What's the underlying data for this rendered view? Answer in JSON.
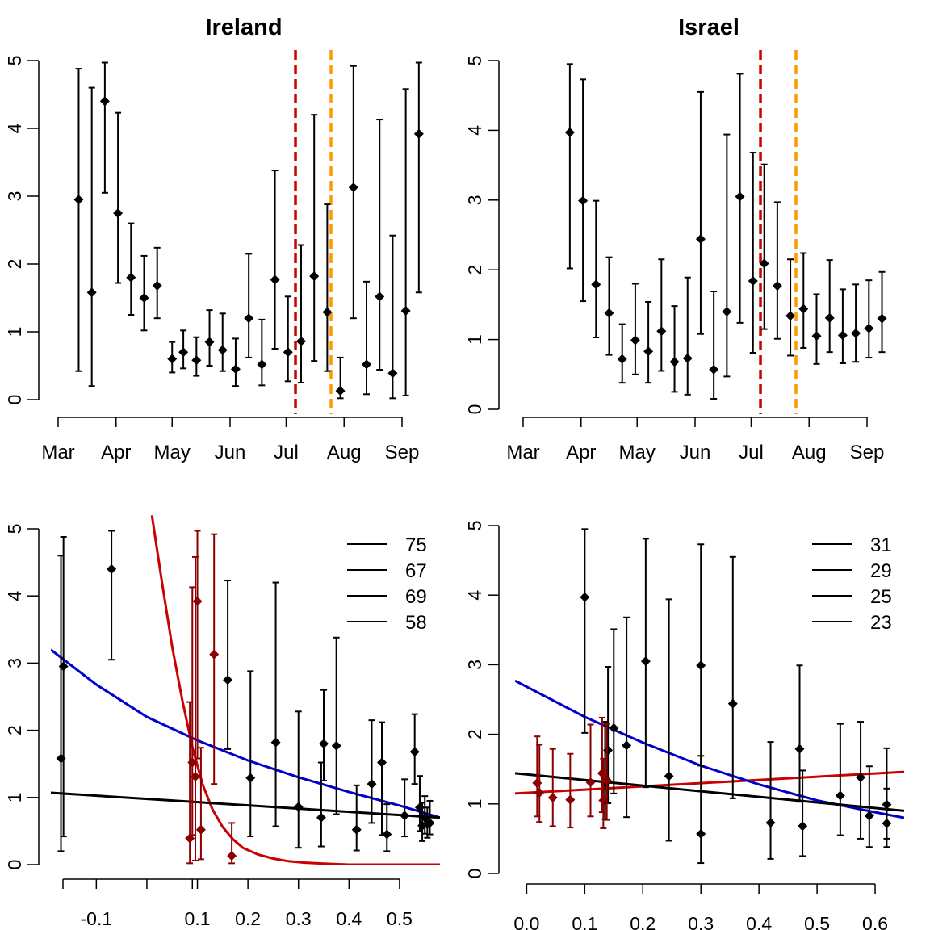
{
  "colors": {
    "points": "#000000",
    "late_points": "#8b0000",
    "red_fit": "#cc0000",
    "blue_fit": "#0000cc",
    "black_fit": "#000000",
    "vline_red": "#cc0000",
    "vline_orange": "#ff9900"
  },
  "chart_data": [
    {
      "type": "scatter",
      "title": "Ireland",
      "ylim": [
        0,
        5
      ],
      "yticks": [
        0,
        1,
        2,
        3,
        4,
        5
      ],
      "x_ticks": [
        {
          "label": "Mar",
          "date": "Mar 1"
        },
        {
          "label": "Apr",
          "date": "Apr 1"
        },
        {
          "label": "May",
          "date": "May 1"
        },
        {
          "label": "Jun",
          "date": "Jun 1"
        },
        {
          "label": "Jul",
          "date": "Jul 1"
        },
        {
          "label": "Aug",
          "date": "Aug 1"
        },
        {
          "label": "Sep",
          "date": "Sep 1"
        }
      ],
      "vlines": [
        {
          "date": "Jul 6",
          "color": "red",
          "style": "dashed"
        },
        {
          "date": "Jul 25",
          "color": "orange",
          "style": "dashed"
        }
      ],
      "points": [
        {
          "date": "Mar 12",
          "y": 2.95,
          "lo": 0.42,
          "hi": 4.88
        },
        {
          "date": "Mar 19",
          "y": 1.58,
          "lo": 0.2,
          "hi": 4.6
        },
        {
          "date": "Mar 26",
          "y": 4.4,
          "lo": 3.05,
          "hi": 4.97
        },
        {
          "date": "Apr 2",
          "y": 2.75,
          "lo": 1.72,
          "hi": 4.23
        },
        {
          "date": "Apr 9",
          "y": 1.8,
          "lo": 1.25,
          "hi": 2.6
        },
        {
          "date": "Apr 16",
          "y": 1.5,
          "lo": 1.02,
          "hi": 2.12
        },
        {
          "date": "Apr 23",
          "y": 1.68,
          "lo": 1.2,
          "hi": 2.24
        },
        {
          "date": "May 1",
          "y": 0.6,
          "lo": 0.4,
          "hi": 0.85
        },
        {
          "date": "May 7",
          "y": 0.7,
          "lo": 0.46,
          "hi": 1.02
        },
        {
          "date": "May 14",
          "y": 0.58,
          "lo": 0.35,
          "hi": 0.92
        },
        {
          "date": "May 21",
          "y": 0.85,
          "lo": 0.5,
          "hi": 1.32
        },
        {
          "date": "May 28",
          "y": 0.73,
          "lo": 0.42,
          "hi": 1.27
        },
        {
          "date": "Jun 4",
          "y": 0.45,
          "lo": 0.2,
          "hi": 0.9
        },
        {
          "date": "Jun 11",
          "y": 1.2,
          "lo": 0.62,
          "hi": 2.15
        },
        {
          "date": "Jun 18",
          "y": 0.52,
          "lo": 0.21,
          "hi": 1.18
        },
        {
          "date": "Jun 25",
          "y": 1.77,
          "lo": 0.75,
          "hi": 3.38
        },
        {
          "date": "Jul 2",
          "y": 0.7,
          "lo": 0.27,
          "hi": 1.52
        },
        {
          "date": "Jul 9",
          "y": 0.86,
          "lo": 0.25,
          "hi": 2.28
        },
        {
          "date": "Jul 16",
          "y": 1.82,
          "lo": 0.57,
          "hi": 4.2
        },
        {
          "date": "Jul 23",
          "y": 1.29,
          "lo": 0.42,
          "hi": 2.88
        },
        {
          "date": "Jul 30",
          "y": 0.13,
          "lo": 0.02,
          "hi": 0.62
        },
        {
          "date": "Aug 6",
          "y": 3.13,
          "lo": 1.2,
          "hi": 4.92
        },
        {
          "date": "Aug 13",
          "y": 0.52,
          "lo": 0.08,
          "hi": 1.74
        },
        {
          "date": "Aug 20",
          "y": 1.52,
          "lo": 0.44,
          "hi": 4.13
        },
        {
          "date": "Aug 27",
          "y": 0.39,
          "lo": 0.02,
          "hi": 2.42
        },
        {
          "date": "Sep 3",
          "y": 1.31,
          "lo": 0.06,
          "hi": 4.58
        },
        {
          "date": "Sep 10",
          "y": 3.92,
          "lo": 1.58,
          "hi": 4.97
        }
      ]
    },
    {
      "type": "scatter",
      "title": "Israel",
      "ylim": [
        0,
        5
      ],
      "yticks": [
        0,
        1,
        2,
        3,
        4,
        5
      ],
      "x_ticks": [
        {
          "label": "Mar",
          "date": "Mar 1"
        },
        {
          "label": "Apr",
          "date": "Apr 1"
        },
        {
          "label": "May",
          "date": "May 1"
        },
        {
          "label": "Jun",
          "date": "Jun 1"
        },
        {
          "label": "Jul",
          "date": "Jul 1"
        },
        {
          "label": "Aug",
          "date": "Aug 1"
        },
        {
          "label": "Sep",
          "date": "Sep 1"
        }
      ],
      "vlines": [
        {
          "date": "Jul 6",
          "color": "red",
          "style": "dashed"
        },
        {
          "date": "Jul 25",
          "color": "orange",
          "style": "dashed"
        }
      ],
      "points": [
        {
          "date": "Mar 26",
          "y": 3.97,
          "lo": 2.02,
          "hi": 4.95
        },
        {
          "date": "Apr 2",
          "y": 2.99,
          "lo": 1.55,
          "hi": 4.73
        },
        {
          "date": "Apr 9",
          "y": 1.79,
          "lo": 1.03,
          "hi": 2.99
        },
        {
          "date": "Apr 16",
          "y": 1.38,
          "lo": 0.78,
          "hi": 2.18
        },
        {
          "date": "Apr 23",
          "y": 0.72,
          "lo": 0.38,
          "hi": 1.22
        },
        {
          "date": "Apr 30",
          "y": 0.99,
          "lo": 0.5,
          "hi": 1.8
        },
        {
          "date": "May 7",
          "y": 0.83,
          "lo": 0.38,
          "hi": 1.54
        },
        {
          "date": "May 14",
          "y": 1.12,
          "lo": 0.55,
          "hi": 2.15
        },
        {
          "date": "May 21",
          "y": 0.68,
          "lo": 0.25,
          "hi": 1.48
        },
        {
          "date": "May 28",
          "y": 0.73,
          "lo": 0.21,
          "hi": 1.89
        },
        {
          "date": "Jun 4",
          "y": 2.44,
          "lo": 1.08,
          "hi": 4.55
        },
        {
          "date": "Jun 11",
          "y": 0.57,
          "lo": 0.15,
          "hi": 1.69
        },
        {
          "date": "Jun 18",
          "y": 1.4,
          "lo": 0.47,
          "hi": 3.94
        },
        {
          "date": "Jun 25",
          "y": 3.05,
          "lo": 1.24,
          "hi": 4.81
        },
        {
          "date": "Jul 2",
          "y": 1.84,
          "lo": 0.81,
          "hi": 3.68
        },
        {
          "date": "Jul 8",
          "y": 2.09,
          "lo": 1.15,
          "hi": 3.51
        },
        {
          "date": "Jul 15",
          "y": 1.77,
          "lo": 1.01,
          "hi": 2.97
        },
        {
          "date": "Jul 22",
          "y": 1.34,
          "lo": 0.77,
          "hi": 2.15
        },
        {
          "date": "Jul 29",
          "y": 1.44,
          "lo": 0.88,
          "hi": 2.24
        },
        {
          "date": "Aug 5",
          "y": 1.05,
          "lo": 0.65,
          "hi": 1.65
        },
        {
          "date": "Aug 12",
          "y": 1.31,
          "lo": 0.82,
          "hi": 2.14
        },
        {
          "date": "Aug 19",
          "y": 1.06,
          "lo": 0.66,
          "hi": 1.72
        },
        {
          "date": "Aug 26",
          "y": 1.09,
          "lo": 0.68,
          "hi": 1.79
        },
        {
          "date": "Sep 2",
          "y": 1.16,
          "lo": 0.74,
          "hi": 1.85
        },
        {
          "date": "Sep 9",
          "y": 1.3,
          "lo": 0.82,
          "hi": 1.97
        }
      ]
    },
    {
      "type": "scatter",
      "title": "",
      "xlim": [
        -0.19,
        0.58
      ],
      "ylim": [
        0,
        5
      ],
      "yticks": [
        0,
        1,
        2,
        3,
        4,
        5
      ],
      "xticks": [
        -0.1,
        0.1,
        0.2,
        0.3,
        0.4,
        0.5
      ],
      "xtick_labels": [
        "-0.1",
        "0.1",
        "0.2",
        "0.3",
        "0.4",
        "0.5"
      ],
      "extra_xticks": [
        0.0,
        0.09
      ],
      "legend": {
        "placement": "top-right",
        "entries": [
          "75",
          "67",
          "69",
          "58"
        ]
      },
      "points": [
        {
          "x": -0.17,
          "y": 1.58,
          "lo": 0.2,
          "hi": 4.6
        },
        {
          "x": -0.165,
          "y": 2.95,
          "lo": 0.42,
          "hi": 4.88
        },
        {
          "x": -0.07,
          "y": 4.4,
          "lo": 3.05,
          "hi": 4.97
        },
        {
          "x": 0.16,
          "y": 2.75,
          "lo": 1.72,
          "hi": 4.23
        },
        {
          "x": 0.205,
          "y": 1.29,
          "lo": 0.42,
          "hi": 2.88
        },
        {
          "x": 0.255,
          "y": 1.82,
          "lo": 0.57,
          "hi": 4.2
        },
        {
          "x": 0.3,
          "y": 0.86,
          "lo": 0.25,
          "hi": 2.28
        },
        {
          "x": 0.345,
          "y": 0.7,
          "lo": 0.27,
          "hi": 1.52
        },
        {
          "x": 0.35,
          "y": 1.8,
          "lo": 1.25,
          "hi": 2.6
        },
        {
          "x": 0.375,
          "y": 1.77,
          "lo": 0.75,
          "hi": 3.38
        },
        {
          "x": 0.415,
          "y": 0.52,
          "lo": 0.21,
          "hi": 1.18
        },
        {
          "x": 0.445,
          "y": 1.2,
          "lo": 0.62,
          "hi": 2.15
        },
        {
          "x": 0.465,
          "y": 1.52,
          "lo": 0.44,
          "hi": 2.12
        },
        {
          "x": 0.475,
          "y": 0.45,
          "lo": 0.2,
          "hi": 0.9
        },
        {
          "x": 0.51,
          "y": 0.73,
          "lo": 0.42,
          "hi": 1.27
        },
        {
          "x": 0.53,
          "y": 1.68,
          "lo": 1.2,
          "hi": 2.24
        },
        {
          "x": 0.54,
          "y": 0.85,
          "lo": 0.5,
          "hi": 1.32
        },
        {
          "x": 0.545,
          "y": 0.58,
          "lo": 0.35,
          "hi": 0.92
        },
        {
          "x": 0.55,
          "y": 0.7,
          "lo": 0.46,
          "hi": 1.02
        },
        {
          "x": 0.555,
          "y": 0.6,
          "lo": 0.4,
          "hi": 0.85
        },
        {
          "x": 0.56,
          "y": 0.62,
          "lo": 0.45,
          "hi": 0.95
        }
      ],
      "red_points": [
        {
          "x": 0.085,
          "y": 0.39,
          "lo": 0.02,
          "hi": 2.42
        },
        {
          "x": 0.09,
          "y": 1.52,
          "lo": 0.44,
          "hi": 4.13
        },
        {
          "x": 0.096,
          "y": 1.31,
          "lo": 0.06,
          "hi": 4.58
        },
        {
          "x": 0.1,
          "y": 3.92,
          "lo": 1.58,
          "hi": 4.97
        },
        {
          "x": 0.107,
          "y": 0.52,
          "lo": 0.08,
          "hi": 1.74
        },
        {
          "x": 0.133,
          "y": 3.13,
          "lo": 1.2,
          "hi": 4.92
        },
        {
          "x": 0.168,
          "y": 0.13,
          "lo": 0.02,
          "hi": 0.62
        }
      ],
      "curves": [
        {
          "color": "red",
          "x": [
            0.01,
            0.03,
            0.05,
            0.07,
            0.09,
            0.11,
            0.13,
            0.15,
            0.17,
            0.19,
            0.22,
            0.25,
            0.28,
            0.31,
            0.35,
            0.4,
            0.5,
            0.58
          ],
          "y": [
            5.2,
            4.2,
            3.25,
            2.45,
            1.75,
            1.2,
            0.82,
            0.56,
            0.38,
            0.25,
            0.15,
            0.09,
            0.05,
            0.03,
            0.015,
            0.0,
            0.0,
            0.0
          ]
        },
        {
          "color": "blue",
          "x": [
            -0.19,
            -0.1,
            0.0,
            0.1,
            0.2,
            0.3,
            0.4,
            0.5,
            0.58
          ],
          "y": [
            3.2,
            2.68,
            2.2,
            1.85,
            1.55,
            1.3,
            1.08,
            0.88,
            0.7
          ]
        },
        {
          "color": "black",
          "x": [
            -0.19,
            0.58
          ],
          "y": [
            1.07,
            0.7
          ]
        }
      ]
    },
    {
      "type": "scatter",
      "title": "",
      "xlim": [
        -0.02,
        0.65
      ],
      "ylim": [
        0,
        5
      ],
      "yticks": [
        0,
        1,
        2,
        3,
        4,
        5
      ],
      "xticks": [
        0.0,
        0.1,
        0.2,
        0.3,
        0.4,
        0.5,
        0.6
      ],
      "xtick_labels": [
        "0.0",
        "0.1",
        "0.2",
        "0.3",
        "0.4",
        "0.5",
        "0.6"
      ],
      "legend": {
        "placement": "top-right",
        "entries": [
          "31",
          "29",
          "25",
          "23"
        ]
      },
      "points": [
        {
          "x": 0.1,
          "y": 3.97,
          "lo": 2.02,
          "hi": 4.95
        },
        {
          "x": 0.135,
          "y": 1.3,
          "lo": 0.78,
          "hi": 2.18
        },
        {
          "x": 0.14,
          "y": 1.77,
          "lo": 1.01,
          "hi": 2.97
        },
        {
          "x": 0.15,
          "y": 2.09,
          "lo": 1.15,
          "hi": 3.51
        },
        {
          "x": 0.172,
          "y": 1.84,
          "lo": 0.81,
          "hi": 3.68
        },
        {
          "x": 0.205,
          "y": 3.05,
          "lo": 1.24,
          "hi": 4.81
        },
        {
          "x": 0.245,
          "y": 1.4,
          "lo": 0.47,
          "hi": 3.94
        },
        {
          "x": 0.3,
          "y": 2.99,
          "lo": 1.55,
          "hi": 4.73
        },
        {
          "x": 0.3,
          "y": 0.57,
          "lo": 0.15,
          "hi": 1.69
        },
        {
          "x": 0.355,
          "y": 2.44,
          "lo": 1.08,
          "hi": 4.55
        },
        {
          "x": 0.42,
          "y": 0.73,
          "lo": 0.21,
          "hi": 1.89
        },
        {
          "x": 0.47,
          "y": 1.79,
          "lo": 1.03,
          "hi": 2.99
        },
        {
          "x": 0.475,
          "y": 0.68,
          "lo": 0.25,
          "hi": 1.48
        },
        {
          "x": 0.54,
          "y": 1.12,
          "lo": 0.55,
          "hi": 2.15
        },
        {
          "x": 0.575,
          "y": 1.38,
          "lo": 0.5,
          "hi": 2.18
        },
        {
          "x": 0.59,
          "y": 0.83,
          "lo": 0.38,
          "hi": 1.54
        },
        {
          "x": 0.62,
          "y": 0.99,
          "lo": 0.5,
          "hi": 1.8
        },
        {
          "x": 0.62,
          "y": 0.72,
          "lo": 0.38,
          "hi": 1.22
        }
      ],
      "red_points": [
        {
          "x": 0.018,
          "y": 1.3,
          "lo": 0.82,
          "hi": 1.97
        },
        {
          "x": 0.022,
          "y": 1.16,
          "lo": 0.74,
          "hi": 1.85
        },
        {
          "x": 0.045,
          "y": 1.09,
          "lo": 0.68,
          "hi": 1.79
        },
        {
          "x": 0.075,
          "y": 1.06,
          "lo": 0.66,
          "hi": 1.72
        },
        {
          "x": 0.11,
          "y": 1.31,
          "lo": 0.82,
          "hi": 2.14
        },
        {
          "x": 0.13,
          "y": 1.44,
          "lo": 0.88,
          "hi": 2.24
        },
        {
          "x": 0.132,
          "y": 1.05,
          "lo": 0.65,
          "hi": 1.65
        },
        {
          "x": 0.138,
          "y": 1.34,
          "lo": 0.77,
          "hi": 2.15
        }
      ],
      "curves": [
        {
          "color": "red",
          "x": [
            -0.02,
            0.65
          ],
          "y": [
            1.15,
            1.46
          ]
        },
        {
          "color": "blue",
          "x": [
            -0.02,
            0.1,
            0.2,
            0.3,
            0.4,
            0.5,
            0.6,
            0.65
          ],
          "y": [
            2.77,
            2.25,
            1.88,
            1.55,
            1.28,
            1.05,
            0.88,
            0.8
          ]
        },
        {
          "color": "black",
          "x": [
            -0.02,
            0.65
          ],
          "y": [
            1.44,
            0.9
          ]
        }
      ]
    }
  ]
}
